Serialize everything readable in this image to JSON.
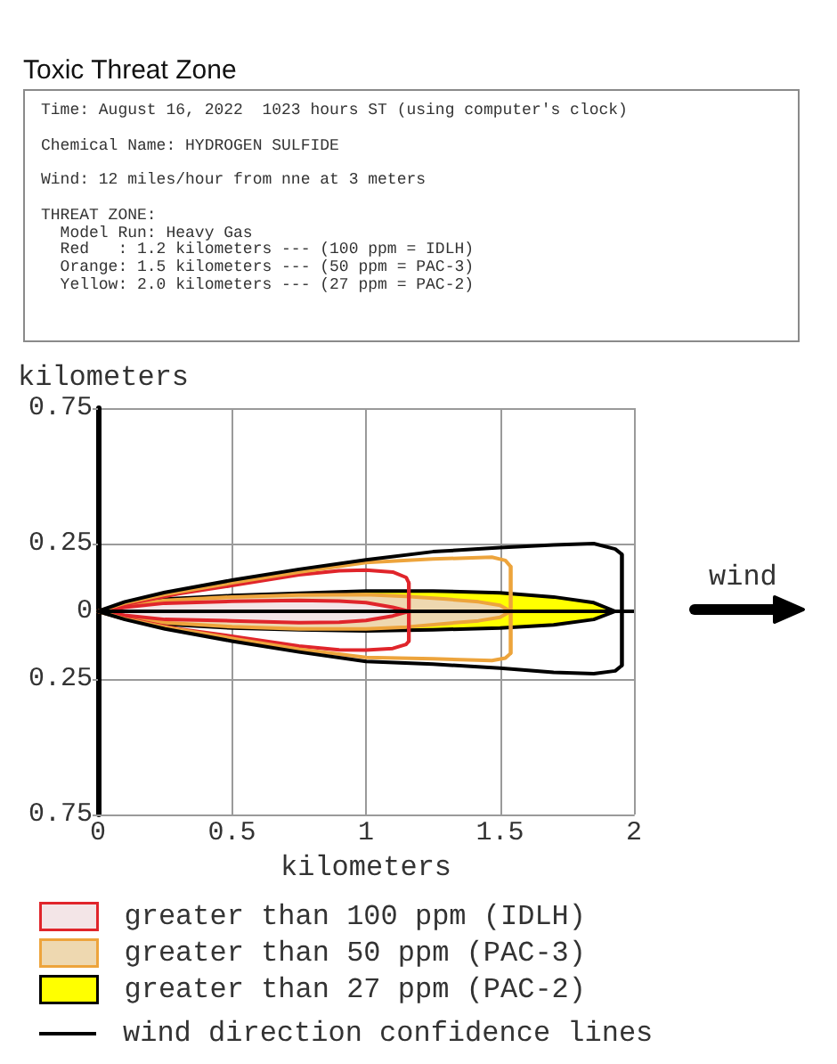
{
  "chart_data": {
    "type": "line",
    "title": "Toxic Threat Zone",
    "annotations": [
      "Time: August 16, 2022  1023 hours ST (using computer's clock)",
      "Chemical Name: HYDROGEN SULFIDE",
      "Wind: 12 miles/hour from nne at 3 meters",
      "THREAT ZONE:",
      "  Model Run: Heavy Gas",
      "  Red   : 1.2 kilometers --- (100 ppm = IDLH)",
      "  Orange: 1.5 kilometers --- (50 ppm = PAC-3)",
      "  Yellow: 2.0 kilometers --- (27 ppm = PAC-2)",
      "wind"
    ],
    "xlabel": "kilometers",
    "ylabel": "kilometers",
    "xlim": [
      0,
      2
    ],
    "xticks": [
      0,
      0.5,
      1,
      1.5,
      2
    ],
    "ylim": [
      -0.75,
      0.75
    ],
    "yticks": [
      {
        "value": -0.75,
        "label": "0.75"
      },
      {
        "value": -0.25,
        "label": "0.25"
      },
      0,
      0.25,
      0.75
    ],
    "grid": true,
    "legend": "bottom",
    "ref_lines": [
      {
        "axis": "y",
        "value": 0,
        "color": "#000000"
      }
    ],
    "series": [
      {
        "name": "greater than 100 ppm (IDLH)",
        "type": "area",
        "color": "#f3e5e7",
        "x": [
          0,
          0.1,
          0.25,
          0.5,
          0.75,
          0.9,
          1,
          1.1,
          1.16,
          1.1,
          1,
          0.9,
          0.75,
          0.5,
          0.25,
          0.1,
          0
        ],
        "values": [
          0,
          0.015,
          0.03,
          0.037,
          0.04,
          0.038,
          0.032,
          0.015,
          0,
          -0.017,
          -0.034,
          -0.04,
          -0.042,
          -0.035,
          -0.03,
          -0.015,
          0
        ]
      },
      {
        "color": "#e0252b",
        "x": [
          0,
          0.1,
          0.3,
          0.5,
          0.75,
          0.9,
          1,
          1.1,
          1.15,
          1.16,
          1.16
        ],
        "values": [
          0,
          0.025,
          0.065,
          0.095,
          0.135,
          0.15,
          0.152,
          0.145,
          0.125,
          0.105,
          -0.11
        ]
      },
      {
        "color": "#e0252b",
        "x": [
          0,
          0.1,
          0.3,
          0.5,
          0.75,
          0.9,
          1,
          1.1,
          1.15,
          1.16,
          1.16
        ],
        "values": [
          0,
          -0.025,
          -0.065,
          -0.092,
          -0.128,
          -0.142,
          -0.143,
          -0.137,
          -0.122,
          -0.11,
          0.105
        ]
      },
      {
        "name": "greater than 50 ppm (PAC-3)",
        "type": "area",
        "color": "#eed8b0",
        "x": [
          0,
          0.1,
          0.25,
          0.5,
          0.75,
          1,
          1.15,
          1.3,
          1.42,
          1.5,
          1.54,
          1.5,
          1.42,
          1.3,
          1.15,
          1,
          0.75,
          0.5,
          0.25,
          0.1,
          0
        ],
        "values": [
          0,
          0.022,
          0.04,
          0.053,
          0.06,
          0.062,
          0.055,
          0.045,
          0.035,
          0.022,
          0,
          -0.022,
          -0.035,
          -0.045,
          -0.058,
          -0.065,
          -0.065,
          -0.057,
          -0.042,
          -0.022,
          0
        ]
      },
      {
        "color": "#eda43c",
        "x": [
          0,
          0.1,
          0.25,
          0.5,
          0.75,
          1,
          1.25,
          1.47,
          1.52,
          1.54,
          1.54
        ],
        "values": [
          0,
          0.03,
          0.062,
          0.105,
          0.145,
          0.18,
          0.193,
          0.2,
          0.188,
          0.165,
          -0.155
        ]
      },
      {
        "color": "#eda43c",
        "x": [
          0,
          0.1,
          0.25,
          0.5,
          0.75,
          1,
          1.25,
          1.47,
          1.52,
          1.54,
          1.54
        ],
        "values": [
          0,
          -0.028,
          -0.058,
          -0.1,
          -0.14,
          -0.17,
          -0.175,
          -0.182,
          -0.173,
          -0.155,
          0.165
        ]
      },
      {
        "name": "greater than 27 ppm (PAC-2)",
        "type": "area",
        "color": "#ffff00",
        "x": [
          0,
          0.1,
          0.25,
          0.5,
          0.75,
          1,
          1.25,
          1.5,
          1.7,
          1.85,
          1.93,
          1.85,
          1.7,
          1.5,
          1.25,
          1,
          0.75,
          0.5,
          0.25,
          0.1,
          0
        ],
        "values": [
          0,
          0.025,
          0.045,
          0.058,
          0.067,
          0.075,
          0.075,
          0.068,
          0.053,
          0.032,
          0,
          -0.03,
          -0.05,
          -0.062,
          -0.068,
          -0.072,
          -0.068,
          -0.062,
          -0.048,
          -0.027,
          0
        ]
      },
      {
        "name": "wind direction confidence lines",
        "color": "#000000",
        "x": [
          0,
          0.1,
          0.25,
          0.5,
          0.75,
          1,
          1.25,
          1.5,
          1.7,
          1.85,
          1.93,
          1.955,
          1.955
        ],
        "values": [
          0,
          0.035,
          0.07,
          0.115,
          0.155,
          0.19,
          0.22,
          0.235,
          0.245,
          0.25,
          0.23,
          0.21,
          -0.2
        ]
      },
      {
        "color": "#000000",
        "x": [
          0,
          0.1,
          0.25,
          0.5,
          0.75,
          1,
          1.25,
          1.5,
          1.7,
          1.85,
          1.93,
          1.955,
          1.955
        ],
        "values": [
          0,
          -0.03,
          -0.065,
          -0.11,
          -0.15,
          -0.185,
          -0.195,
          -0.21,
          -0.225,
          -0.23,
          -0.22,
          -0.2,
          0.21
        ]
      }
    ]
  }
}
